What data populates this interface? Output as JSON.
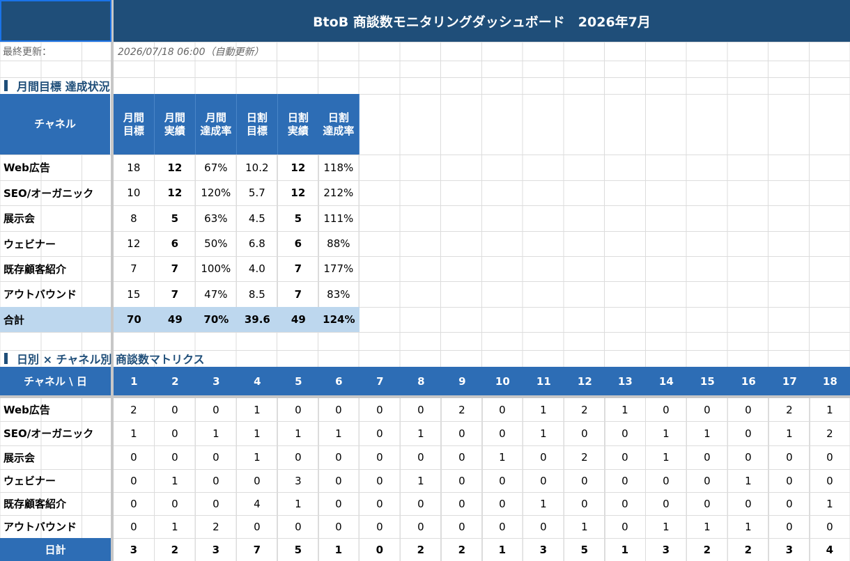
{
  "title": "BtoB 商談数モニタリングダッシュボード　2026年7月",
  "last_updated": {
    "label": "最終更新：",
    "value": "2026/07/18 06:00（自動更新）"
  },
  "section1": {
    "title": "月間目標 達成状況",
    "headers": [
      "チャネル",
      "月間\n目標",
      "月間\n実績",
      "月間\n達成率",
      "日割\n目標",
      "日割\n実績",
      "日割\n達成率"
    ],
    "rows": [
      {
        "channel": "Web広告",
        "monthly_target": "18",
        "monthly_actual": "12",
        "monthly_rate": "67%",
        "daily_target": "10.2",
        "daily_actual": "12",
        "daily_rate": "118%"
      },
      {
        "channel": "SEO/オーガニック",
        "monthly_target": "10",
        "monthly_actual": "12",
        "monthly_rate": "120%",
        "daily_target": "5.7",
        "daily_actual": "12",
        "daily_rate": "212%"
      },
      {
        "channel": "展示会",
        "monthly_target": "8",
        "monthly_actual": "5",
        "monthly_rate": "63%",
        "daily_target": "4.5",
        "daily_actual": "5",
        "daily_rate": "111%"
      },
      {
        "channel": "ウェビナー",
        "monthly_target": "12",
        "monthly_actual": "6",
        "monthly_rate": "50%",
        "daily_target": "6.8",
        "daily_actual": "6",
        "daily_rate": "88%"
      },
      {
        "channel": "既存顧客紹介",
        "monthly_target": "7",
        "monthly_actual": "7",
        "monthly_rate": "100%",
        "daily_target": "4.0",
        "daily_actual": "7",
        "daily_rate": "177%"
      },
      {
        "channel": "アウトバウンド",
        "monthly_target": "15",
        "monthly_actual": "7",
        "monthly_rate": "47%",
        "daily_target": "8.5",
        "daily_actual": "7",
        "daily_rate": "83%"
      }
    ],
    "total": {
      "channel": "合計",
      "monthly_target": "70",
      "monthly_actual": "49",
      "monthly_rate": "70%",
      "daily_target": "39.6",
      "daily_actual": "49",
      "daily_rate": "124%"
    }
  },
  "section2": {
    "title": "日別 × チャネル別 商談数マトリクス",
    "corner": "チャネル \\ 日",
    "days": [
      "1",
      "2",
      "3",
      "4",
      "5",
      "6",
      "7",
      "8",
      "9",
      "10",
      "11",
      "12",
      "13",
      "14",
      "15",
      "16",
      "17",
      "18"
    ],
    "rows": [
      {
        "channel": "Web広告",
        "values": [
          "2",
          "0",
          "0",
          "1",
          "0",
          "0",
          "0",
          "0",
          "2",
          "0",
          "1",
          "2",
          "1",
          "0",
          "0",
          "0",
          "2",
          "1"
        ]
      },
      {
        "channel": "SEO/オーガニック",
        "values": [
          "1",
          "0",
          "1",
          "1",
          "1",
          "1",
          "0",
          "1",
          "0",
          "0",
          "1",
          "0",
          "0",
          "1",
          "1",
          "0",
          "1",
          "2"
        ]
      },
      {
        "channel": "展示会",
        "values": [
          "0",
          "0",
          "0",
          "1",
          "0",
          "0",
          "0",
          "0",
          "0",
          "1",
          "0",
          "2",
          "0",
          "1",
          "0",
          "0",
          "0",
          "0"
        ]
      },
      {
        "channel": "ウェビナー",
        "values": [
          "0",
          "1",
          "0",
          "0",
          "3",
          "0",
          "0",
          "1",
          "0",
          "0",
          "0",
          "0",
          "0",
          "0",
          "0",
          "1",
          "0",
          "0"
        ]
      },
      {
        "channel": "既存顧客紹介",
        "values": [
          "0",
          "0",
          "0",
          "4",
          "1",
          "0",
          "0",
          "0",
          "0",
          "0",
          "1",
          "0",
          "0",
          "0",
          "0",
          "0",
          "0",
          "1"
        ]
      },
      {
        "channel": "アウトバウンド",
        "values": [
          "0",
          "1",
          "2",
          "0",
          "0",
          "0",
          "0",
          "0",
          "0",
          "0",
          "0",
          "1",
          "0",
          "1",
          "1",
          "1",
          "0",
          "0"
        ]
      }
    ],
    "total": {
      "channel": "日計",
      "values": [
        "3",
        "2",
        "3",
        "7",
        "5",
        "1",
        "0",
        "2",
        "2",
        "1",
        "3",
        "5",
        "1",
        "3",
        "2",
        "2",
        "3",
        "4"
      ]
    }
  },
  "colors": {
    "title_bg": "#1f4e79",
    "header_bg": "#2d6db5",
    "total_bg": "#bdd7ee"
  }
}
